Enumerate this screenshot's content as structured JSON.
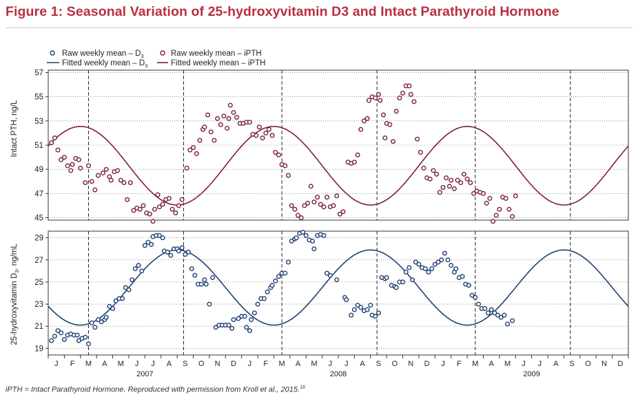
{
  "title": "Figure 1: Seasonal Variation of 25-hydroxyvitamin D3 and Intact Parathyroid Hormone",
  "footnote": "iPTH = Intact Parathyroid Hormone. Reproduced with permission from Kroll et al., 2015.",
  "footnote_ref": "16",
  "colors": {
    "title": "#b8303e",
    "d3": "#1f3f73",
    "ipth": "#7a1f35"
  },
  "chart_data": {
    "type": "scatter",
    "legend": {
      "placement": "top-left",
      "raw_d3": "Raw weekly mean – D",
      "raw_ipth": "Raw weekly mean – iPTH",
      "fit_d3": "Fitted weekly mean – D",
      "fit_ipth": "Fitted weekly mean – iPTH",
      "sub": "3"
    },
    "x": {
      "months": [
        "J",
        "F",
        "M",
        "A",
        "M",
        "J",
        "J",
        "A",
        "S",
        "O",
        "N",
        "D",
        "J",
        "F",
        "M",
        "A",
        "M",
        "J",
        "J",
        "A",
        "S",
        "O",
        "N",
        "D",
        "J",
        "F",
        "M",
        "A",
        "M",
        "J",
        "J",
        "A",
        "S",
        "O",
        "N",
        "D"
      ],
      "years": [
        "2007",
        "2008",
        "2009"
      ],
      "dashed_months": [
        2.5,
        8.4,
        14.5,
        20.4,
        26.5,
        32.4
      ]
    },
    "top_panel": {
      "ylabel": "Intact PTH, ng/L",
      "yticks": [
        45,
        47,
        49,
        51,
        53,
        55,
        57
      ],
      "ylim": [
        44.8,
        57.2
      ],
      "fitted": {
        "mean": 49.3,
        "amplitude": 3.25,
        "peak_month": 2.0
      },
      "raw": [
        [
          0.2,
          51.2
        ],
        [
          0.4,
          51.6
        ],
        [
          0.6,
          50.6
        ],
        [
          0.8,
          49.8
        ],
        [
          1.0,
          50.0
        ],
        [
          1.2,
          49.3
        ],
        [
          1.4,
          48.9
        ],
        [
          1.5,
          49.4
        ],
        [
          1.7,
          49.9
        ],
        [
          1.9,
          49.8
        ],
        [
          2.0,
          49.1
        ],
        [
          2.3,
          47.9
        ],
        [
          2.5,
          49.3
        ],
        [
          2.7,
          48.0
        ],
        [
          2.9,
          47.3
        ],
        [
          3.1,
          48.5
        ],
        [
          3.4,
          48.7
        ],
        [
          3.6,
          49.0
        ],
        [
          3.8,
          48.4
        ],
        [
          3.9,
          48.1
        ],
        [
          4.1,
          48.8
        ],
        [
          4.3,
          48.9
        ],
        [
          4.5,
          48.1
        ],
        [
          4.7,
          47.9
        ],
        [
          4.9,
          46.5
        ],
        [
          5.1,
          47.9
        ],
        [
          5.3,
          45.6
        ],
        [
          5.5,
          45.8
        ],
        [
          5.7,
          45.7
        ],
        [
          5.9,
          46.0
        ],
        [
          6.1,
          45.4
        ],
        [
          6.3,
          45.3
        ],
        [
          6.5,
          44.7
        ],
        [
          6.6,
          45.7
        ],
        [
          6.8,
          46.9
        ],
        [
          6.9,
          45.9
        ],
        [
          7.1,
          46.1
        ],
        [
          7.3,
          46.5
        ],
        [
          7.5,
          46.6
        ],
        [
          7.7,
          45.7
        ],
        [
          7.9,
          45.4
        ],
        [
          8.1,
          46.0
        ],
        [
          8.3,
          46.5
        ],
        [
          8.6,
          49.1
        ],
        [
          8.8,
          50.6
        ],
        [
          9.0,
          50.8
        ],
        [
          9.2,
          50.3
        ],
        [
          9.4,
          51.4
        ],
        [
          9.6,
          52.3
        ],
        [
          9.7,
          52.5
        ],
        [
          9.9,
          53.5
        ],
        [
          10.1,
          52.1
        ],
        [
          10.3,
          51.4
        ],
        [
          10.5,
          53.2
        ],
        [
          10.7,
          52.7
        ],
        [
          10.9,
          53.4
        ],
        [
          11.1,
          52.4
        ],
        [
          11.2,
          53.2
        ],
        [
          11.3,
          54.3
        ],
        [
          11.5,
          53.7
        ],
        [
          11.7,
          53.3
        ],
        [
          11.9,
          52.8
        ],
        [
          12.1,
          52.8
        ],
        [
          12.3,
          52.9
        ],
        [
          12.5,
          52.9
        ],
        [
          12.7,
          51.9
        ],
        [
          12.9,
          51.8
        ],
        [
          13.1,
          52.5
        ],
        [
          13.3,
          51.6
        ],
        [
          13.5,
          52.0
        ],
        [
          13.7,
          52.3
        ],
        [
          13.9,
          51.8
        ],
        [
          14.1,
          50.4
        ],
        [
          14.3,
          50.2
        ],
        [
          14.5,
          49.4
        ],
        [
          14.7,
          49.3
        ],
        [
          14.9,
          48.5
        ],
        [
          15.1,
          46.0
        ],
        [
          15.3,
          45.7
        ],
        [
          15.5,
          45.2
        ],
        [
          15.7,
          45.0
        ],
        [
          15.9,
          46.0
        ],
        [
          16.1,
          46.2
        ],
        [
          16.3,
          47.6
        ],
        [
          16.5,
          46.3
        ],
        [
          16.7,
          46.7
        ],
        [
          16.9,
          46.1
        ],
        [
          17.1,
          45.9
        ],
        [
          17.3,
          46.7
        ],
        [
          17.5,
          45.9
        ],
        [
          17.7,
          46.0
        ],
        [
          17.9,
          46.8
        ],
        [
          18.1,
          45.3
        ],
        [
          18.3,
          45.5
        ],
        [
          18.6,
          49.6
        ],
        [
          18.8,
          49.5
        ],
        [
          19.0,
          49.6
        ],
        [
          19.2,
          50.2
        ],
        [
          19.4,
          52.3
        ],
        [
          19.6,
          53.0
        ],
        [
          19.8,
          53.2
        ],
        [
          19.9,
          54.7
        ],
        [
          20.1,
          55.0
        ],
        [
          20.3,
          54.9
        ],
        [
          20.5,
          55.2
        ],
        [
          20.6,
          54.7
        ],
        [
          20.8,
          53.5
        ],
        [
          20.9,
          51.6
        ],
        [
          21.0,
          52.8
        ],
        [
          21.2,
          52.7
        ],
        [
          21.4,
          51.3
        ],
        [
          21.6,
          53.8
        ],
        [
          21.8,
          54.9
        ],
        [
          22.0,
          55.3
        ],
        [
          22.2,
          55.9
        ],
        [
          22.4,
          55.9
        ],
        [
          22.5,
          55.2
        ],
        [
          22.7,
          54.6
        ],
        [
          22.9,
          51.5
        ],
        [
          23.1,
          50.4
        ],
        [
          23.3,
          49.1
        ],
        [
          23.5,
          48.3
        ],
        [
          23.7,
          48.2
        ],
        [
          23.9,
          48.9
        ],
        [
          24.1,
          48.6
        ],
        [
          24.3,
          47.1
        ],
        [
          24.5,
          47.5
        ],
        [
          24.7,
          48.3
        ],
        [
          24.9,
          47.6
        ],
        [
          25.0,
          48.1
        ],
        [
          25.2,
          47.4
        ],
        [
          25.4,
          48.1
        ],
        [
          25.6,
          47.9
        ],
        [
          25.8,
          48.6
        ],
        [
          26.0,
          48.2
        ],
        [
          26.2,
          47.9
        ],
        [
          26.4,
          47.0
        ],
        [
          26.6,
          47.2
        ],
        [
          26.8,
          47.1
        ],
        [
          27.0,
          47.0
        ],
        [
          27.2,
          46.2
        ],
        [
          27.4,
          46.6
        ],
        [
          27.6,
          44.7
        ],
        [
          27.8,
          45.2
        ],
        [
          28.0,
          45.7
        ],
        [
          28.2,
          46.7
        ],
        [
          28.4,
          46.6
        ],
        [
          28.6,
          45.7
        ],
        [
          28.8,
          45.1
        ],
        [
          29.0,
          46.8
        ]
      ]
    },
    "bottom_panel": {
      "ylabel": "25-hydroxyvitamin D",
      "ylabel_unit": ", ng/mL",
      "ylabel_sub": "3",
      "yticks": [
        19,
        21,
        23,
        25,
        27,
        29
      ],
      "ylim": [
        18.4,
        29.6
      ],
      "fitted": {
        "mean": 24.5,
        "amplitude": 3.4,
        "peak_month": 8.0
      },
      "raw": [
        [
          0.2,
          19.7
        ],
        [
          0.4,
          20.1
        ],
        [
          0.6,
          20.6
        ],
        [
          0.8,
          20.4
        ],
        [
          1.0,
          19.8
        ],
        [
          1.2,
          20.2
        ],
        [
          1.4,
          20.3
        ],
        [
          1.6,
          20.2
        ],
        [
          1.8,
          20.2
        ],
        [
          1.9,
          19.7
        ],
        [
          2.1,
          19.9
        ],
        [
          2.3,
          20.0
        ],
        [
          2.5,
          19.4
        ],
        [
          2.7,
          21.3
        ],
        [
          2.9,
          20.9
        ],
        [
          3.1,
          21.6
        ],
        [
          3.3,
          21.4
        ],
        [
          3.5,
          21.6
        ],
        [
          3.6,
          21.8
        ],
        [
          3.8,
          22.8
        ],
        [
          4.0,
          22.6
        ],
        [
          4.2,
          23.3
        ],
        [
          4.4,
          23.5
        ],
        [
          4.6,
          23.5
        ],
        [
          4.8,
          24.5
        ],
        [
          5.0,
          24.3
        ],
        [
          5.2,
          25.2
        ],
        [
          5.4,
          26.2
        ],
        [
          5.6,
          26.5
        ],
        [
          5.8,
          26.0
        ],
        [
          6.0,
          28.3
        ],
        [
          6.2,
          28.6
        ],
        [
          6.4,
          28.4
        ],
        [
          6.5,
          29.1
        ],
        [
          6.7,
          29.2
        ],
        [
          6.9,
          29.2
        ],
        [
          7.1,
          29.0
        ],
        [
          7.2,
          27.8
        ],
        [
          7.4,
          27.7
        ],
        [
          7.6,
          27.4
        ],
        [
          7.8,
          28.0
        ],
        [
          8.0,
          28.0
        ],
        [
          8.1,
          27.8
        ],
        [
          8.3,
          28.1
        ],
        [
          8.5,
          27.5
        ],
        [
          8.7,
          27.7
        ],
        [
          8.9,
          26.2
        ],
        [
          9.1,
          25.6
        ],
        [
          9.3,
          24.8
        ],
        [
          9.5,
          24.8
        ],
        [
          9.7,
          25.2
        ],
        [
          9.8,
          24.8
        ],
        [
          10.0,
          23.0
        ],
        [
          10.2,
          25.4
        ],
        [
          10.4,
          20.9
        ],
        [
          10.6,
          21.1
        ],
        [
          10.8,
          21.1
        ],
        [
          11.0,
          21.1
        ],
        [
          11.2,
          21.1
        ],
        [
          11.4,
          20.8
        ],
        [
          11.5,
          21.6
        ],
        [
          11.8,
          21.7
        ],
        [
          12.0,
          21.9
        ],
        [
          12.2,
          21.9
        ],
        [
          12.3,
          20.9
        ],
        [
          12.5,
          20.6
        ],
        [
          12.6,
          21.6
        ],
        [
          12.8,
          22.2
        ],
        [
          13.0,
          23.0
        ],
        [
          13.2,
          23.5
        ],
        [
          13.4,
          23.5
        ],
        [
          13.6,
          24.1
        ],
        [
          13.8,
          24.5
        ],
        [
          13.9,
          24.7
        ],
        [
          14.1,
          25.1
        ],
        [
          14.3,
          25.5
        ],
        [
          14.5,
          25.8
        ],
        [
          14.7,
          25.8
        ],
        [
          14.9,
          26.8
        ],
        [
          15.1,
          28.7
        ],
        [
          15.3,
          28.9
        ],
        [
          15.4,
          29.0
        ],
        [
          15.6,
          29.4
        ],
        [
          15.8,
          29.5
        ],
        [
          16.0,
          29.2
        ],
        [
          16.2,
          28.8
        ],
        [
          16.4,
          28.7
        ],
        [
          16.5,
          28.0
        ],
        [
          16.7,
          29.2
        ],
        [
          16.9,
          29.3
        ],
        [
          17.1,
          29.2
        ],
        [
          17.3,
          25.8
        ],
        [
          17.5,
          25.6
        ],
        [
          17.9,
          25.2
        ],
        [
          18.4,
          23.6
        ],
        [
          18.5,
          23.4
        ],
        [
          18.8,
          22.0
        ],
        [
          19.0,
          22.5
        ],
        [
          19.2,
          22.9
        ],
        [
          19.4,
          22.7
        ],
        [
          19.6,
          22.4
        ],
        [
          19.8,
          22.5
        ],
        [
          20.0,
          22.9
        ],
        [
          20.1,
          22.0
        ],
        [
          20.3,
          21.9
        ],
        [
          20.5,
          22.2
        ],
        [
          20.7,
          25.4
        ],
        [
          20.9,
          25.3
        ],
        [
          21.0,
          25.4
        ],
        [
          21.3,
          24.7
        ],
        [
          21.5,
          24.6
        ],
        [
          21.6,
          24.5
        ],
        [
          21.8,
          25.0
        ],
        [
          22.0,
          25.0
        ],
        [
          22.2,
          25.9
        ],
        [
          22.4,
          26.3
        ],
        [
          22.6,
          25.2
        ],
        [
          22.8,
          26.8
        ],
        [
          23.0,
          26.6
        ],
        [
          23.2,
          26.3
        ],
        [
          23.4,
          26.2
        ],
        [
          23.6,
          25.9
        ],
        [
          23.8,
          26.2
        ],
        [
          24.0,
          26.6
        ],
        [
          24.2,
          26.8
        ],
        [
          24.4,
          27.0
        ],
        [
          24.6,
          27.6
        ],
        [
          24.8,
          27.0
        ],
        [
          25.0,
          26.5
        ],
        [
          25.2,
          25.9
        ],
        [
          25.3,
          26.2
        ],
        [
          25.5,
          25.4
        ],
        [
          25.7,
          25.5
        ],
        [
          25.9,
          24.8
        ],
        [
          26.1,
          24.7
        ],
        [
          26.3,
          23.8
        ],
        [
          26.5,
          23.6
        ],
        [
          26.7,
          23.0
        ],
        [
          26.9,
          22.6
        ],
        [
          27.1,
          22.6
        ],
        [
          27.3,
          22.2
        ],
        [
          27.5,
          22.5
        ],
        [
          27.7,
          22.2
        ],
        [
          27.9,
          22.0
        ],
        [
          28.1,
          21.8
        ],
        [
          28.3,
          22.0
        ],
        [
          28.5,
          21.2
        ],
        [
          28.8,
          21.5
        ]
      ]
    }
  }
}
